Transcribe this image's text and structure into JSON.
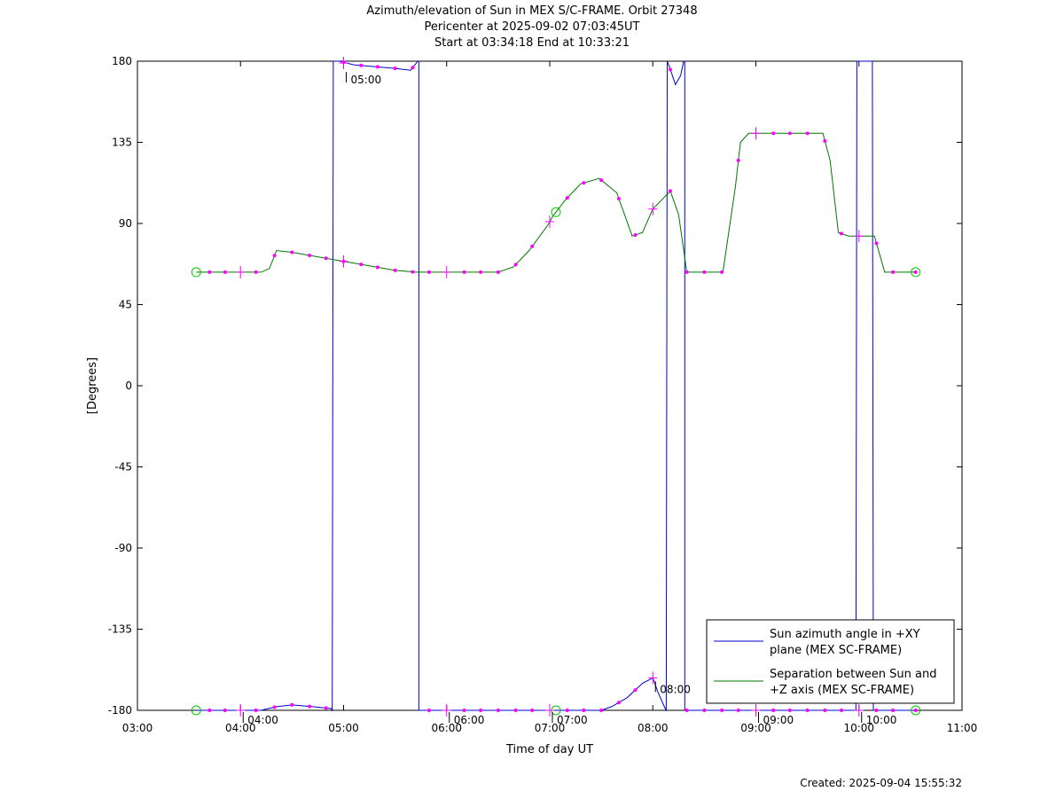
{
  "title_lines": [
    "Azimuth/elevation of Sun in MEX S/C-FRAME.  Orbit 27348",
    "Pericenter at 2025-09-02 07:03:45UT",
    "Start at 03:34:18 End at 10:33:21"
  ],
  "footer": "Created: 2025-09-04 15:55:32",
  "chart_data": {
    "type": "line",
    "xlabel": "Time of day UT",
    "ylabel": "[Degrees]",
    "xlim": [
      3.0,
      11.0
    ],
    "ylim": [
      -180,
      180
    ],
    "x_ticks": [
      "03:00",
      "04:00",
      "05:00",
      "06:00",
      "07:00",
      "08:00",
      "09:00",
      "10:00",
      "11:00"
    ],
    "y_ticks": [
      180,
      135,
      90,
      45,
      0,
      -45,
      -90,
      -135,
      -180
    ],
    "legend_position": "bottom-right",
    "series": [
      {
        "name": "Sun azimuth angle in +XY plane (MEX SC-FRAME)",
        "color": "#0000cc",
        "x": [
          3.57,
          3.9,
          4.2,
          4.35,
          4.5,
          4.7,
          4.88,
          4.89,
          4.9,
          4.96,
          5.1,
          5.3,
          5.5,
          5.65,
          5.72,
          5.73,
          5.73,
          5.8,
          6.0,
          6.5,
          7.0,
          7.5,
          7.6,
          7.75,
          7.9,
          8.0,
          8.05,
          8.12,
          8.13,
          8.14,
          8.16,
          8.22,
          8.27,
          8.3,
          8.31,
          8.31,
          8.45,
          9.0,
          9.5,
          9.97,
          9.98,
          9.99,
          10.12,
          10.13,
          10.14,
          10.3,
          10.55
        ],
        "y": [
          -180,
          -180,
          -180,
          -178,
          -177,
          -178,
          -179,
          -180,
          180,
          180,
          178,
          177,
          176,
          175,
          180,
          180,
          -180,
          -180,
          -180,
          -180,
          -180,
          -180,
          -178,
          -173,
          -165,
          -162,
          -170,
          -179,
          -180,
          180,
          177,
          167,
          172,
          180,
          180,
          -180,
          -180,
          -180,
          -180,
          -180,
          180,
          180,
          180,
          180,
          -180,
          -180,
          -180
        ]
      },
      {
        "name": "Separation between Sun and +Z axis (MEX SC-FRAME)",
        "color": "#007700",
        "x": [
          3.57,
          3.7,
          4.0,
          4.2,
          4.28,
          4.35,
          4.5,
          4.7,
          5.0,
          5.3,
          5.5,
          5.7,
          6.0,
          6.3,
          6.5,
          6.65,
          6.8,
          6.98,
          7.03,
          7.15,
          7.3,
          7.48,
          7.65,
          7.8,
          7.9,
          8.0,
          8.17,
          8.25,
          8.33,
          8.5,
          8.68,
          8.8,
          8.85,
          8.93,
          9.0,
          9.3,
          9.65,
          9.72,
          9.8,
          9.9,
          10.0,
          10.15,
          10.25,
          10.55
        ],
        "y": [
          63,
          63,
          63,
          63,
          65,
          75,
          74,
          72,
          69,
          66,
          64,
          63,
          63,
          63,
          63,
          66,
          75,
          89,
          94,
          103,
          112,
          115,
          107,
          83,
          85,
          98,
          108,
          95,
          63,
          63,
          63,
          110,
          135,
          140,
          140,
          140,
          140,
          125,
          85,
          83,
          83,
          83,
          63,
          63
        ]
      }
    ],
    "markers": {
      "dot_x": [
        3.7,
        3.85,
        4.15,
        4.33,
        4.5,
        4.67,
        4.83,
        5.0,
        5.17,
        5.33,
        5.5,
        5.67,
        5.83,
        6.17,
        6.33,
        6.5,
        6.67,
        6.83,
        7.17,
        7.33,
        7.5,
        7.67,
        7.83,
        8.17,
        8.33,
        8.5,
        8.67,
        8.83,
        9.17,
        9.33,
        9.5,
        9.67,
        9.83,
        10.17,
        10.33,
        10.55
      ],
      "plus_x": [
        4.0,
        5.0,
        6.0,
        7.0,
        8.0,
        9.0,
        10.0
      ],
      "circle_x": [
        3.57,
        7.06,
        10.55
      ]
    },
    "annotations": [
      {
        "x": 5.0,
        "series": "azimuth_top",
        "text": "05:00"
      },
      {
        "x": 4.0,
        "series": "azimuth_bottom",
        "text": "04:00"
      },
      {
        "x": 6.0,
        "series": "azimuth_bottom",
        "text": "06:00"
      },
      {
        "x": 7.0,
        "series": "azimuth_bottom",
        "text": "07:00"
      },
      {
        "x": 8.0,
        "series": "azimuth_bottom",
        "text": "08:00"
      },
      {
        "x": 9.0,
        "series": "azimuth_bottom",
        "text": "09:00"
      },
      {
        "x": 10.0,
        "series": "azimuth_bottom",
        "text": "10:00"
      }
    ]
  }
}
